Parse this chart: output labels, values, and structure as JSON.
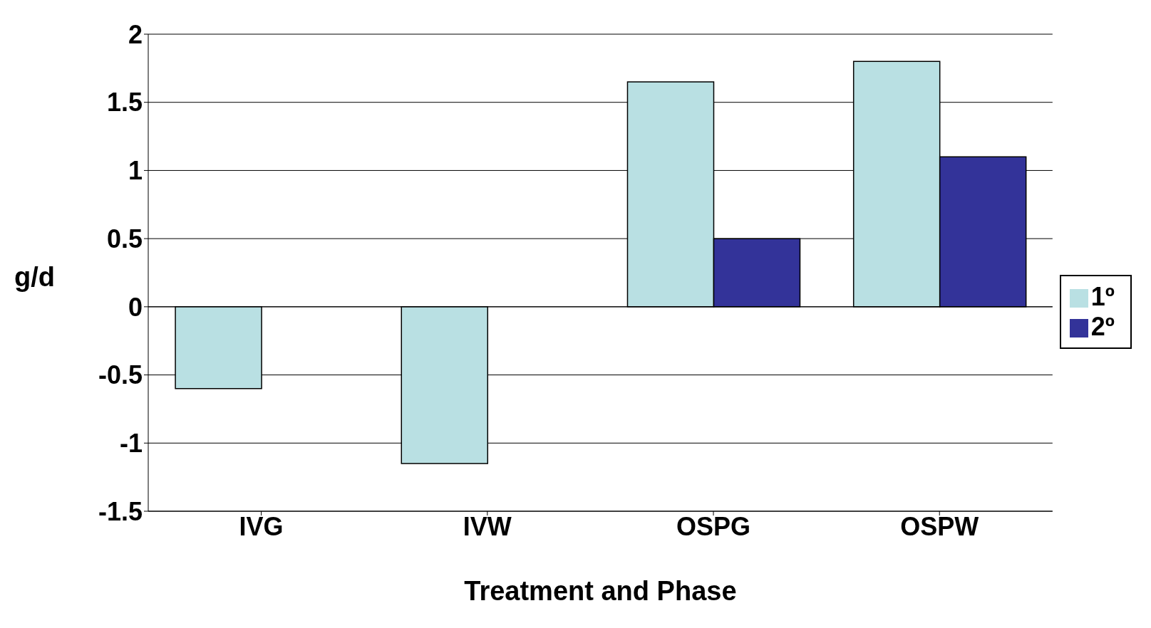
{
  "chart_data": {
    "type": "bar",
    "xlabel": "Treatment and Phase",
    "ylabel": "g/d",
    "categories": [
      "IVG",
      "IVW",
      "OSPG",
      "OSPW"
    ],
    "series": [
      {
        "name": "1º",
        "color": "#b9e0e3",
        "values": [
          -0.6,
          -1.15,
          1.65,
          1.8
        ]
      },
      {
        "name": "2º",
        "color": "#333399",
        "values": [
          0,
          0,
          0.5,
          1.1
        ]
      }
    ],
    "ylim": [
      -1.5,
      2
    ],
    "yticks": [
      -1.5,
      -1,
      -0.5,
      0,
      0.5,
      1,
      1.5,
      2
    ],
    "grid": "y",
    "legend": "right"
  }
}
